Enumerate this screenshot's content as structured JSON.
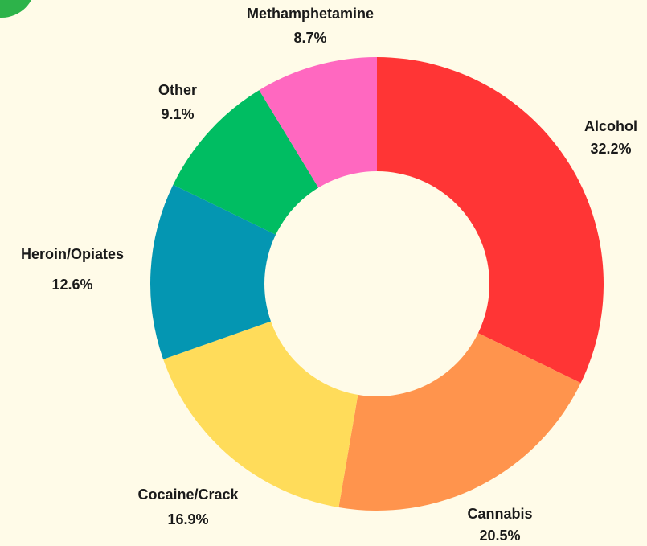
{
  "chart_data": {
    "type": "pie",
    "donut": true,
    "title": "",
    "slices": [
      {
        "label": "Alcohol",
        "value": 32.2,
        "display": "32.2%",
        "color": "#ff3535"
      },
      {
        "label": "Cannabis",
        "value": 20.5,
        "display": "20.5%",
        "color": "#ff944d"
      },
      {
        "label": "Cocaine/Crack",
        "value": 16.9,
        "display": "16.9%",
        "color": "#ffdc5a"
      },
      {
        "label": "Heroin/Opiates",
        "value": 12.6,
        "display": "12.6%",
        "color": "#0496b2"
      },
      {
        "label": "Other",
        "value": 9.1,
        "display": "9.1%",
        "color": "#00bd62"
      },
      {
        "label": "Methamphetamine",
        "value": 8.7,
        "display": "8.7%",
        "color": "#ff68c0"
      }
    ],
    "start_angle": "12 o'clock",
    "direction": "clockwise",
    "legend": "none"
  },
  "colors": {
    "background": "#fffbe8",
    "corner_badge": "#2db34a"
  }
}
